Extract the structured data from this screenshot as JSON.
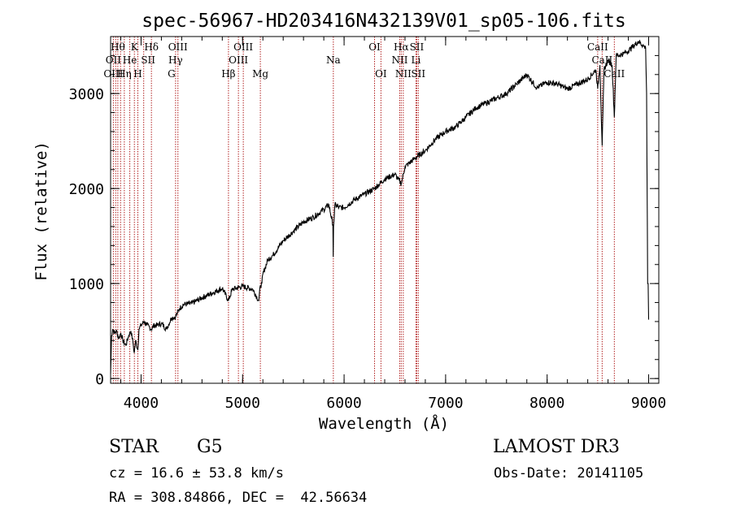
{
  "chart_data": {
    "type": "line",
    "title": "spec-56967-HD203416N432139V01_sp05-106.fits",
    "xlabel": "Wavelength (Å)",
    "ylabel": "Flux (relative)",
    "xlim": [
      3700,
      9100
    ],
    "ylim": [
      -50,
      3600
    ],
    "x_ticks": [
      4000,
      5000,
      6000,
      7000,
      8000,
      9000
    ],
    "x_tick_labels": [
      "4000",
      "5000",
      "6000",
      "7000",
      "8000",
      "9000"
    ],
    "x_minor_step": 200,
    "y_ticks": [
      0,
      1000,
      2000,
      3000
    ],
    "y_tick_labels": [
      "0",
      "1000",
      "2000",
      "3000"
    ],
    "y_minor_step": 200,
    "series": [
      {
        "name": "spectrum",
        "x": [
          3700,
          3710,
          3720,
          3740,
          3760,
          3780,
          3800,
          3820,
          3850,
          3880,
          3900,
          3920,
          3933,
          3945,
          3968,
          3980,
          4000,
          4030,
          4060,
          4101,
          4130,
          4160,
          4200,
          4250,
          4300,
          4340,
          4380,
          4420,
          4500,
          4600,
          4700,
          4800,
          4861,
          4900,
          5000,
          5100,
          5160,
          5175,
          5190,
          5200,
          5250,
          5300,
          5400,
          5500,
          5600,
          5700,
          5800,
          5850,
          5890,
          5893,
          5896,
          5910,
          5950,
          6000,
          6100,
          6200,
          6300,
          6400,
          6500,
          6563,
          6600,
          6700,
          6800,
          6900,
          7000,
          7100,
          7200,
          7300,
          7400,
          7500,
          7600,
          7700,
          7800,
          7900,
          8000,
          8100,
          8200,
          8300,
          8400,
          8480,
          8498,
          8520,
          8542,
          8560,
          8600,
          8640,
          8662,
          8680,
          8700,
          8750,
          8800,
          8850,
          8900,
          8950,
          8970,
          8980,
          8990,
          8995,
          9000
        ],
        "y": [
          50,
          450,
          520,
          480,
          500,
          420,
          480,
          400,
          350,
          460,
          500,
          380,
          270,
          400,
          300,
          520,
          560,
          600,
          560,
          520,
          560,
          560,
          580,
          520,
          640,
          650,
          740,
          780,
          790,
          850,
          900,
          950,
          820,
          940,
          970,
          940,
          820,
          980,
          1000,
          1100,
          1250,
          1300,
          1450,
          1550,
          1650,
          1700,
          1780,
          1830,
          1620,
          1280,
          1600,
          1830,
          1800,
          1800,
          1880,
          1940,
          2000,
          2100,
          2150,
          2050,
          2230,
          2320,
          2400,
          2520,
          2600,
          2650,
          2750,
          2850,
          2900,
          2950,
          3000,
          3100,
          3200,
          3060,
          3120,
          3100,
          3050,
          3100,
          3150,
          3250,
          3050,
          3300,
          2450,
          3250,
          3350,
          3300,
          2750,
          3400,
          3400,
          3420,
          3450,
          3500,
          3550,
          3500,
          3480,
          3000,
          1000,
          1000,
          620
        ]
      }
    ],
    "line_marker_wavelengths": [
      3727,
      3750,
      3771,
      3798,
      3835,
      3889,
      3934,
      3968,
      4026,
      4102,
      4340,
      4363,
      4861,
      4959,
      5007,
      5175,
      5894,
      6300,
      6363,
      6548,
      6563,
      6583,
      6708,
      6716,
      6731,
      8498,
      8542,
      8662
    ],
    "line_labels": [
      {
        "text": "Hθ",
        "wavelength": 3771,
        "row": 1
      },
      {
        "text": "K",
        "wavelength": 3934,
        "row": 1
      },
      {
        "text": "Hδ",
        "wavelength": 4102,
        "row": 1
      },
      {
        "text": "OIII",
        "wavelength": 4363,
        "row": 1
      },
      {
        "text": "OIII",
        "wavelength": 5007,
        "row": 1
      },
      {
        "text": "OI",
        "wavelength": 6300,
        "row": 1
      },
      {
        "text": "Hα",
        "wavelength": 6563,
        "row": 1
      },
      {
        "text": "SII",
        "wavelength": 6716,
        "row": 1
      },
      {
        "text": "CaII",
        "wavelength": 8498,
        "row": 1
      },
      {
        "text": "OII",
        "wavelength": 3727,
        "row": 2
      },
      {
        "text": "He",
        "wavelength": 3889,
        "row": 2
      },
      {
        "text": "SII",
        "wavelength": 4070,
        "row": 2
      },
      {
        "text": "Hγ",
        "wavelength": 4340,
        "row": 2
      },
      {
        "text": "OIII",
        "wavelength": 4959,
        "row": 2
      },
      {
        "text": "Na",
        "wavelength": 5894,
        "row": 2
      },
      {
        "text": "NII",
        "wavelength": 6548,
        "row": 2
      },
      {
        "text": "Li",
        "wavelength": 6708,
        "row": 2
      },
      {
        "text": "CaII",
        "wavelength": 8542,
        "row": 2
      },
      {
        "text": "OIII",
        "wavelength": 3727,
        "row": 3
      },
      {
        "text": "Hη",
        "wavelength": 3835,
        "row": 3
      },
      {
        "text": "H",
        "wavelength": 3968,
        "row": 3
      },
      {
        "text": "G",
        "wavelength": 4300,
        "row": 3
      },
      {
        "text": "Hβ",
        "wavelength": 4861,
        "row": 3
      },
      {
        "text": "Mg",
        "wavelength": 5175,
        "row": 3
      },
      {
        "text": "OI",
        "wavelength": 6363,
        "row": 3
      },
      {
        "text": "NII",
        "wavelength": 6583,
        "row": 3
      },
      {
        "text": "SII",
        "wavelength": 6731,
        "row": 3
      },
      {
        "text": "CaII",
        "wavelength": 8662,
        "row": 3
      }
    ]
  },
  "info": {
    "object_class": "STAR",
    "subclass": "G5",
    "survey": "LAMOST DR3",
    "cz": "cz = 16.6 ± 53.8 km/s",
    "obs_date": "Obs-Date: 20141105",
    "coords": "RA = 308.84866, DEC =  42.56634"
  },
  "colors": {
    "line_marker": "#b22222",
    "spectrum": "#000000",
    "axes": "#000000"
  }
}
